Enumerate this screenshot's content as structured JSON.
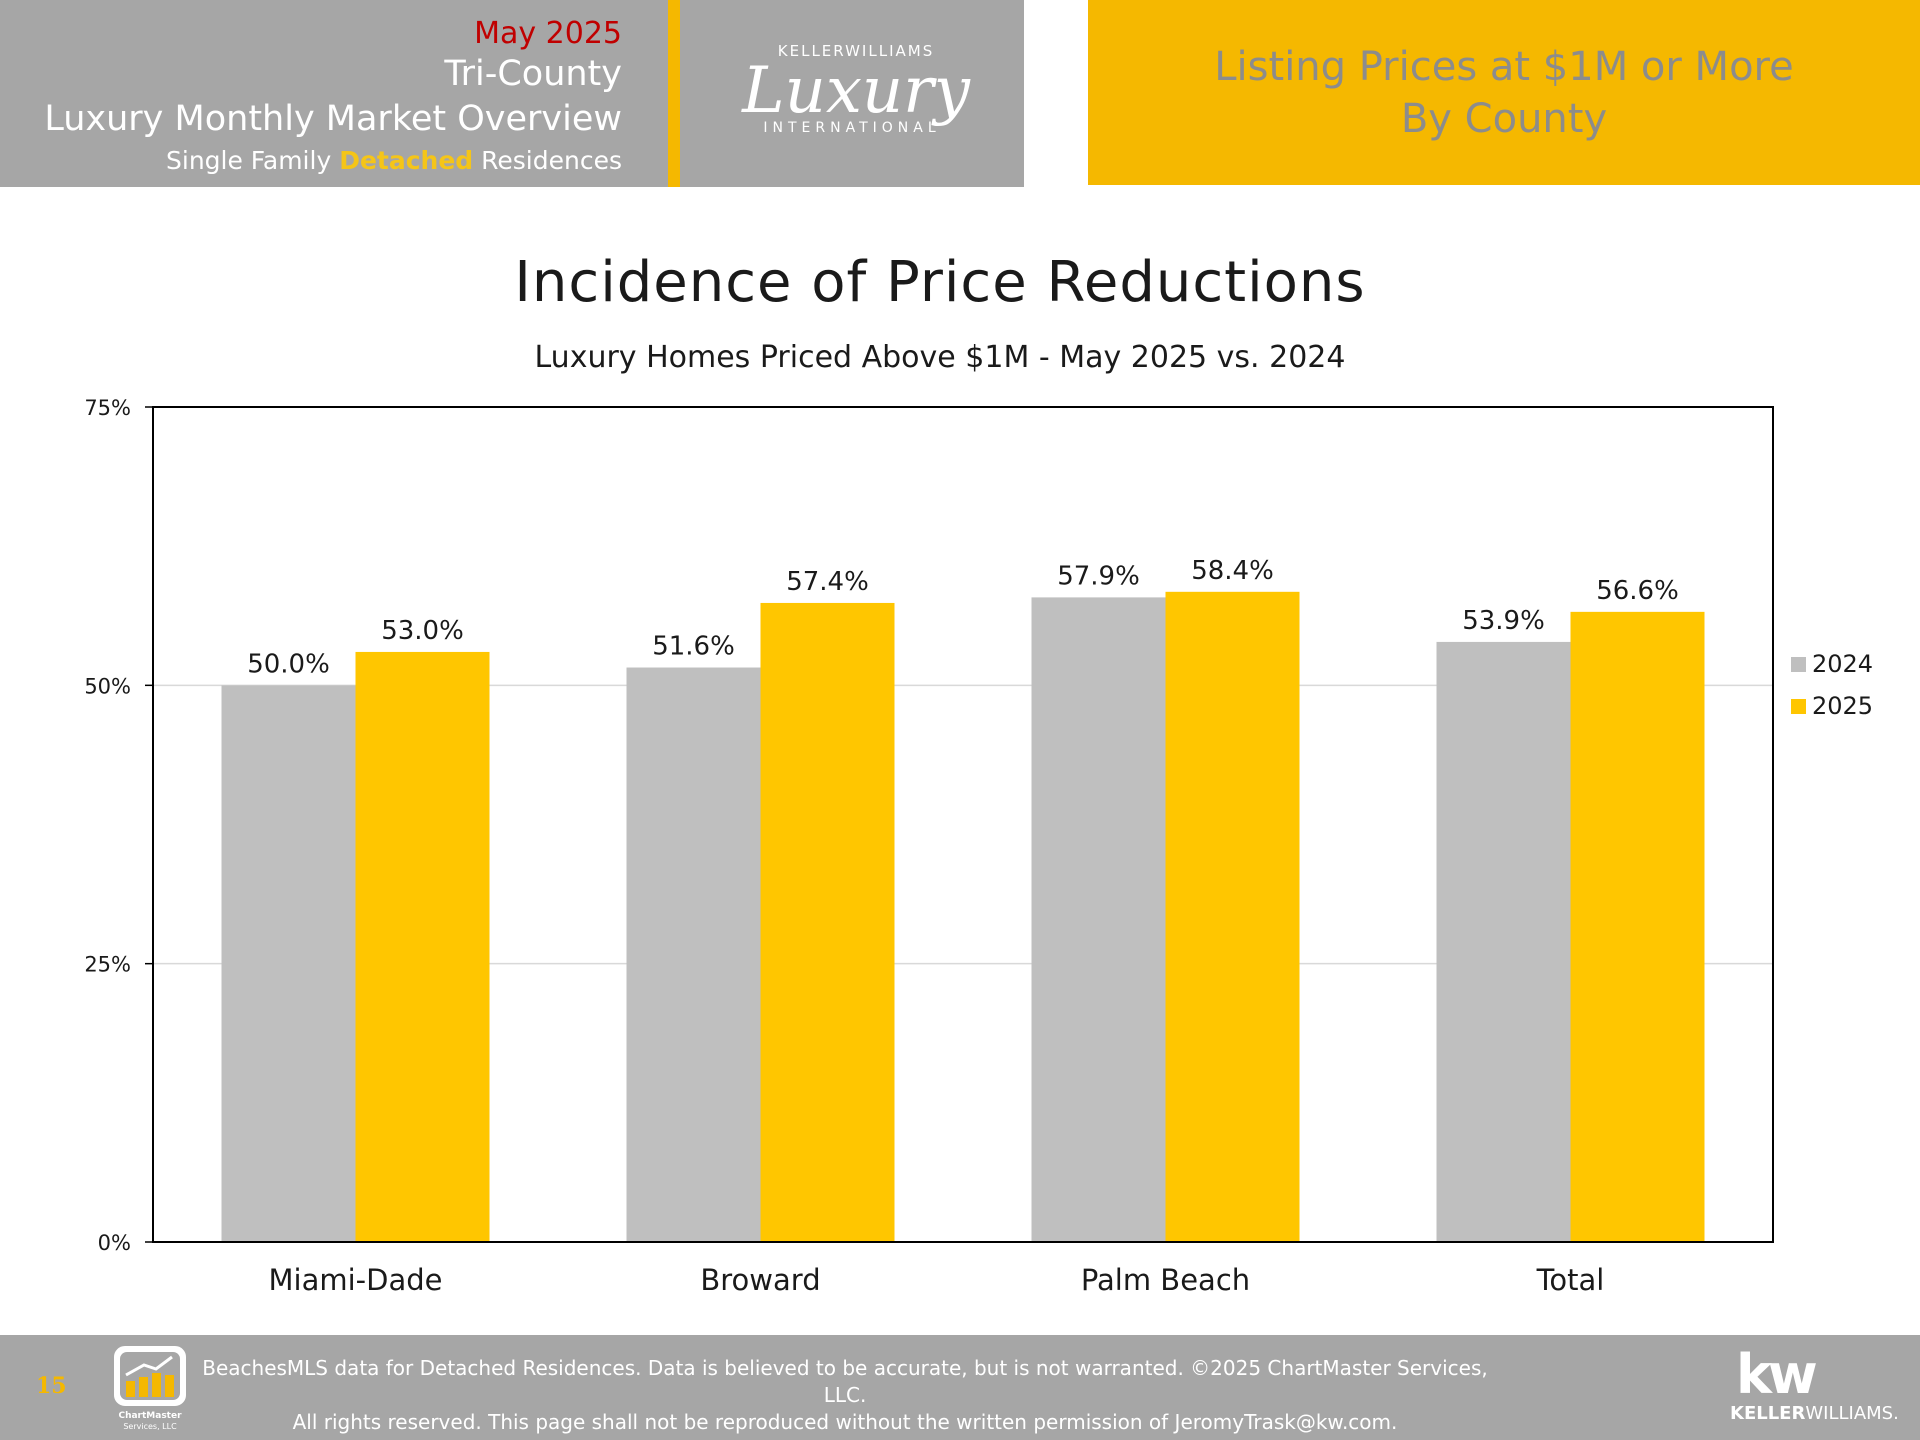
{
  "header": {
    "date": "May 2025",
    "region": "Tri-County",
    "report": "Luxury Monthly Market Overview",
    "sub_prefix": "Single Family ",
    "sub_highlight": "Detached",
    "sub_suffix": " Residences",
    "logo_top": "KELLERWILLIAMS",
    "logo_script": "Luxury",
    "logo_bottom": "INTERNATIONAL",
    "section_line1": "Listing Prices at $1M or More",
    "section_line2": "By County"
  },
  "chart_data": {
    "type": "bar",
    "title": "Incidence of Price Reductions",
    "subtitle": "Luxury Homes Priced Above $1M - May 2025 vs. 2024",
    "categories": [
      "Miami-Dade",
      "Broward",
      "Palm Beach",
      "Total"
    ],
    "series": [
      {
        "name": "2024",
        "values": [
          50.0,
          51.6,
          57.9,
          53.9
        ],
        "color": "#bfbfbf"
      },
      {
        "name": "2025",
        "values": [
          53.0,
          57.4,
          58.4,
          56.6
        ],
        "color": "#ffc600"
      }
    ],
    "data_labels": [
      [
        "50.0%",
        "51.6%",
        "57.9%",
        "53.9%"
      ],
      [
        "53.0%",
        "57.4%",
        "58.4%",
        "56.6%"
      ]
    ],
    "ylim": [
      0,
      75
    ],
    "yticks": [
      0,
      25,
      50,
      75
    ],
    "ytick_labels": [
      "0%",
      "25%",
      "50%",
      "75%"
    ],
    "grid": true,
    "legend_position": "right"
  },
  "footer": {
    "page_number": "15",
    "line1": "BeachesMLS data for Detached Residences.  Data is believed to be accurate, but is not warranted.   ©2025  ChartMaster Services, LLC.",
    "line2": "All rights reserved. This page shall not be reproduced without the written permission of JeromyTrask@kw.com.",
    "chartmaster_name": "ChartMaster",
    "chartmaster_sub": "Services, LLC",
    "kw_mark": "kw",
    "kw_name_bold": "KELLER",
    "kw_name_rest": "WILLIAMS."
  }
}
